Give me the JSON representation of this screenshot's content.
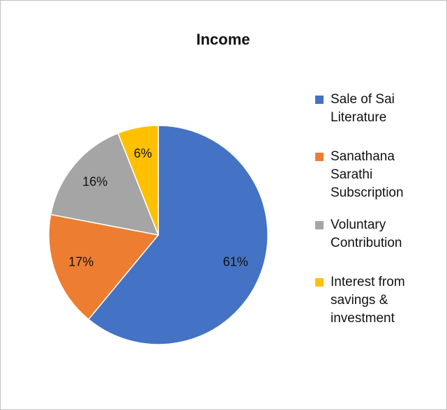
{
  "chart_data": {
    "type": "pie",
    "title": "Income",
    "categories": [
      "Sale of Sai Literature",
      "Sanathana Sarathi Subscription",
      "Voluntary Contribution",
      "Interest from savings & investment"
    ],
    "values": [
      61,
      17,
      16,
      6
    ],
    "value_labels": [
      "61%",
      "17%",
      "16%",
      "6%"
    ],
    "colors": [
      "#4472c4",
      "#ed7d31",
      "#a5a5a5",
      "#ffc000"
    ],
    "legend": "right"
  }
}
